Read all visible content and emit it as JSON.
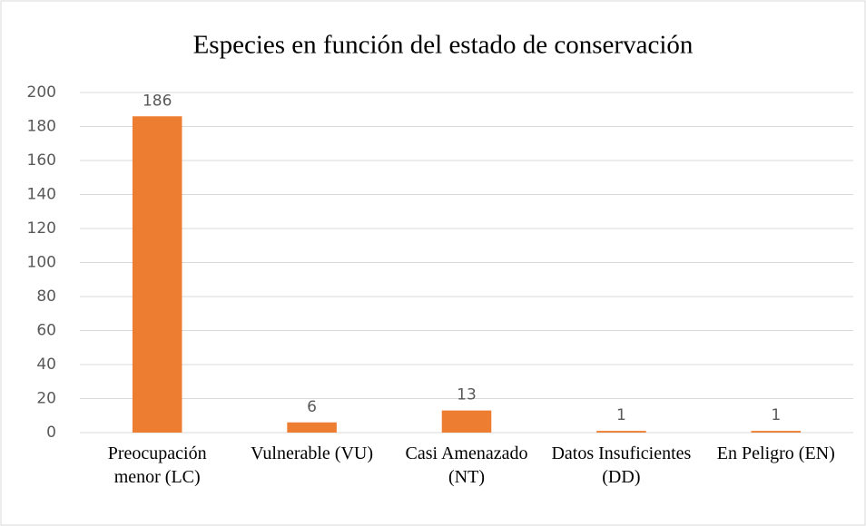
{
  "chart_data": {
    "type": "bar",
    "title": "Especies en función del estado de conservación",
    "categories": [
      "Preocupación menor (LC)",
      "Vulnerable (VU)",
      "Casi Amenazado (NT)",
      "Datos Insuficientes (DD)",
      "En Peligro (EN)"
    ],
    "values": [
      186,
      6,
      13,
      1,
      1
    ],
    "color": "#ed7d31",
    "ylim": [
      0,
      200
    ],
    "yticks": [
      0,
      20,
      40,
      60,
      80,
      100,
      120,
      140,
      160,
      180,
      200
    ],
    "grid": true
  }
}
